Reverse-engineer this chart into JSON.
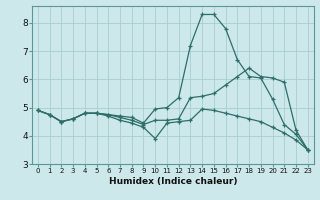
{
  "xlabel": "Humidex (Indice chaleur)",
  "ylabel": "",
  "xlim": [
    -0.5,
    23.5
  ],
  "ylim": [
    3,
    8.6
  ],
  "yticks": [
    3,
    4,
    5,
    6,
    7,
    8
  ],
  "xticks": [
    0,
    1,
    2,
    3,
    4,
    5,
    6,
    7,
    8,
    9,
    10,
    11,
    12,
    13,
    14,
    15,
    16,
    17,
    18,
    19,
    20,
    21,
    22,
    23
  ],
  "bg_color": "#cde8ea",
  "grid_color": "#a8cdd0",
  "line_color": "#2d6e68",
  "line1_x": [
    0,
    1,
    2,
    3,
    4,
    5,
    6,
    7,
    8,
    9,
    10,
    11,
    12,
    13,
    14,
    15,
    16,
    17,
    18,
    19,
    20,
    21,
    22,
    23
  ],
  "line1_y": [
    4.9,
    4.75,
    4.5,
    4.6,
    4.8,
    4.8,
    4.75,
    4.7,
    4.65,
    4.45,
    4.95,
    5.0,
    5.35,
    7.2,
    8.3,
    8.3,
    7.8,
    6.7,
    6.1,
    6.05,
    5.3,
    4.4,
    4.05,
    3.5
  ],
  "line2_x": [
    0,
    1,
    2,
    3,
    4,
    5,
    6,
    7,
    8,
    9,
    10,
    11,
    12,
    13,
    14,
    15,
    16,
    17,
    18,
    19,
    20,
    21,
    22,
    23
  ],
  "line2_y": [
    4.9,
    4.75,
    4.5,
    4.6,
    4.8,
    4.8,
    4.75,
    4.65,
    4.55,
    4.4,
    4.55,
    4.55,
    4.6,
    5.35,
    5.4,
    5.5,
    5.8,
    6.1,
    6.4,
    6.1,
    6.05,
    5.9,
    4.2,
    3.5
  ],
  "line3_x": [
    0,
    1,
    2,
    3,
    4,
    5,
    6,
    7,
    8,
    9,
    10,
    11,
    12,
    13,
    14,
    15,
    16,
    17,
    18,
    19,
    20,
    21,
    22,
    23
  ],
  "line3_y": [
    4.9,
    4.75,
    4.5,
    4.6,
    4.8,
    4.8,
    4.7,
    4.55,
    4.45,
    4.3,
    3.9,
    4.45,
    4.5,
    4.55,
    4.95,
    4.9,
    4.8,
    4.7,
    4.6,
    4.5,
    4.3,
    4.1,
    3.85,
    3.5
  ]
}
